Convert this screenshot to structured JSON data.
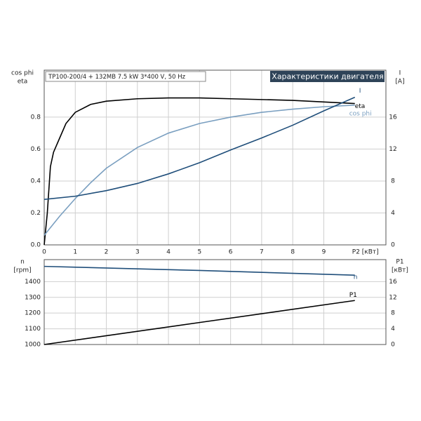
{
  "chart_data": [
    {
      "type": "line",
      "title": "TP100-200/4 + 132MB  7.5 kW  3*400 V, 50 Hz",
      "header": "Характеристики двигателя",
      "xlabel": "P2 [кВт]",
      "ylabel": [
        "cos phi",
        "eta"
      ],
      "y2label": [
        "I",
        "[A]"
      ],
      "xlim": [
        0,
        11
      ],
      "xticks": [
        0,
        1,
        2,
        3,
        4,
        5,
        6,
        7,
        8,
        9
      ],
      "ylim": [
        0,
        1.094
      ],
      "yticks": [
        {
          "value": 0,
          "label": "0.0"
        },
        0.2,
        0.4,
        0.6,
        0.8
      ],
      "y2lim": [
        0,
        21.9
      ],
      "y2ticks": [
        0,
        4,
        8,
        12,
        16
      ],
      "grid": true,
      "series": [
        {
          "name": "eta",
          "color": "#000000",
          "x": [
            0,
            0.1,
            0.2,
            0.3,
            0.5,
            0.7,
            1,
            1.5,
            2,
            3,
            4,
            5,
            6,
            7,
            8,
            9,
            10
          ],
          "values": [
            0.0,
            0.2,
            0.49,
            0.58,
            0.67,
            0.76,
            0.83,
            0.88,
            0.9,
            0.915,
            0.92,
            0.92,
            0.915,
            0.91,
            0.905,
            0.895,
            0.885
          ]
        },
        {
          "name": "cos phi",
          "color": "#7a9fc0",
          "x": [
            0,
            0.5,
            1,
            1.5,
            2,
            3,
            4,
            5,
            6,
            7,
            8,
            9,
            10
          ],
          "values": [
            0.06,
            0.18,
            0.29,
            0.39,
            0.48,
            0.61,
            0.7,
            0.76,
            0.8,
            0.83,
            0.85,
            0.865,
            0.875
          ]
        },
        {
          "name": "I",
          "color": "#1f4e7a",
          "axis": "y2",
          "x": [
            0,
            1,
            2,
            3,
            4,
            5,
            6,
            7,
            8,
            9,
            10
          ],
          "values": [
            5.7,
            6.1,
            6.8,
            7.7,
            8.9,
            10.3,
            11.9,
            13.4,
            15.0,
            16.8,
            18.5
          ]
        }
      ]
    },
    {
      "type": "line",
      "ylabel": [
        "n",
        "[rpm]"
      ],
      "y2label": [
        "P1",
        "[кВт]"
      ],
      "xlim": [
        0,
        11
      ],
      "ylim": [
        1000,
        1540
      ],
      "yticks": [
        1000,
        1100,
        1200,
        1300,
        1400
      ],
      "y2lim": [
        0,
        21.6
      ],
      "y2ticks": [
        0,
        4,
        8,
        12,
        16
      ],
      "grid": true,
      "series": [
        {
          "name": "n",
          "color": "#1f4e7a",
          "x": [
            0,
            5,
            10
          ],
          "values": [
            1497,
            1471,
            1441
          ]
        },
        {
          "name": "P1",
          "color": "#000000",
          "axis": "y2",
          "x": [
            0,
            5,
            10
          ],
          "values": [
            0,
            5.6,
            11.2
          ]
        }
      ]
    }
  ]
}
